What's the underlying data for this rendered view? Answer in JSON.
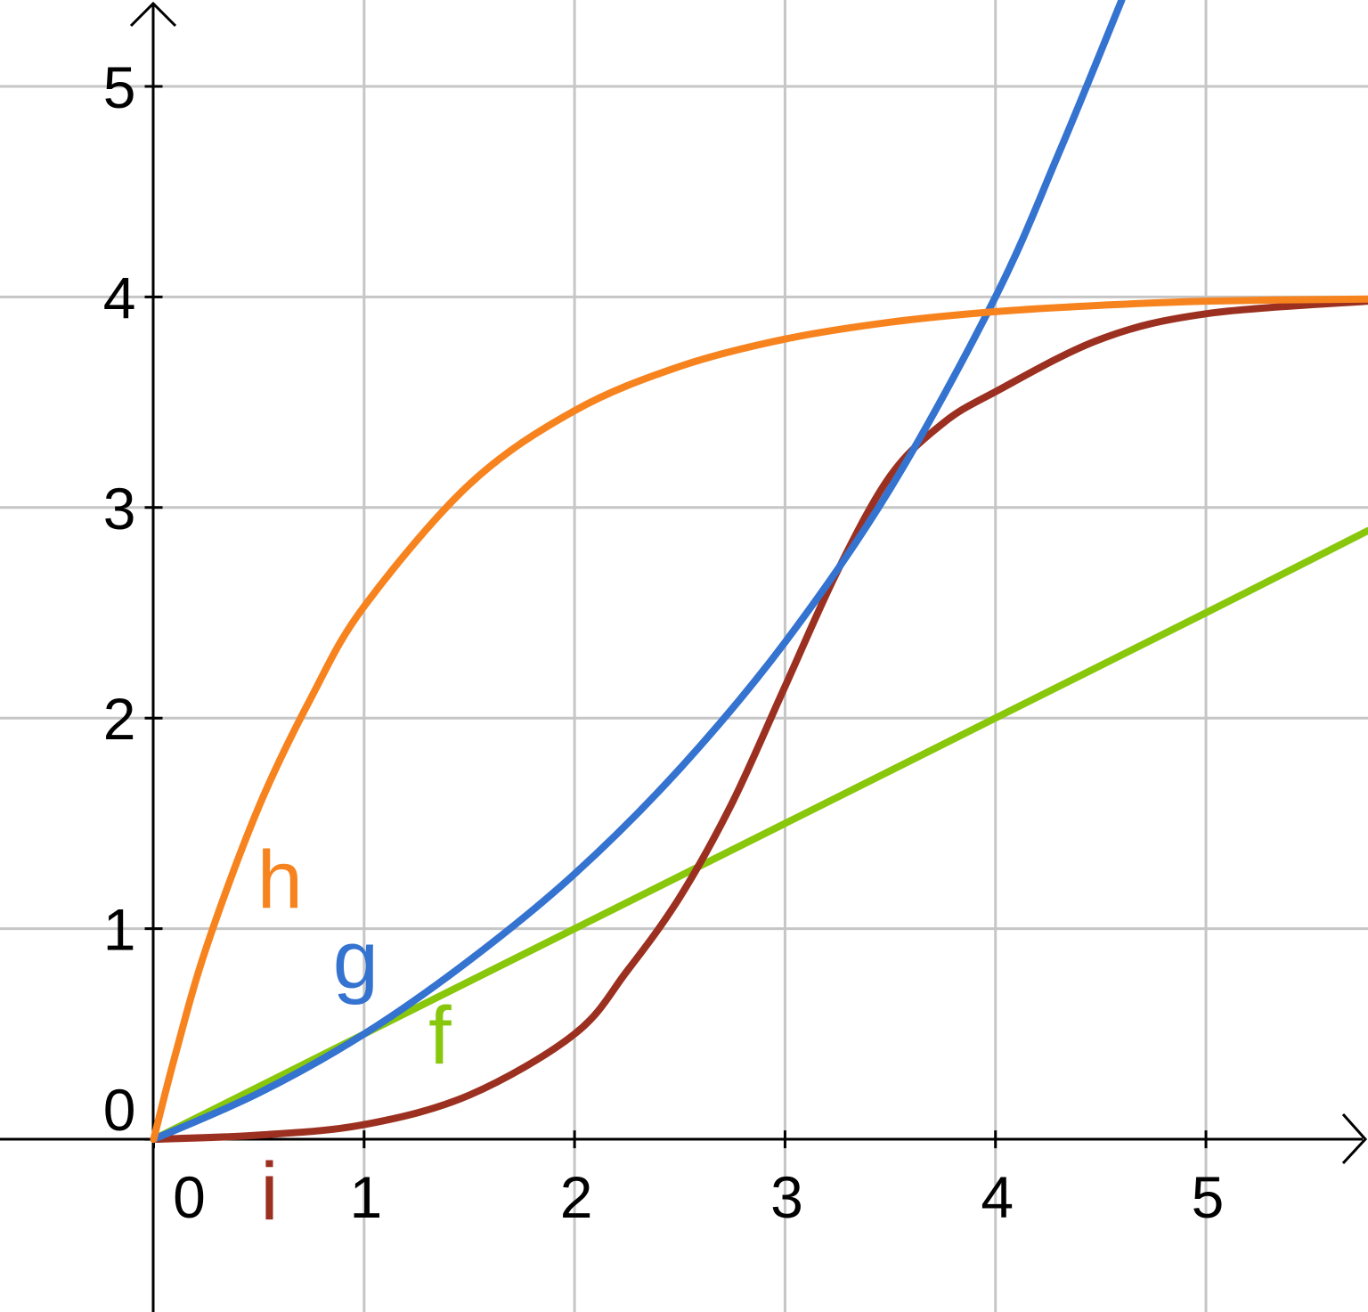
{
  "chart_data": {
    "type": "line",
    "title": "",
    "xlabel": "",
    "ylabel": "",
    "xlim": [
      -0.73,
      5.77
    ],
    "ylim": [
      -0.82,
      5.41
    ],
    "grid": true,
    "x_ticks": [
      "0",
      "1",
      "2",
      "3",
      "4",
      "5"
    ],
    "y_ticks": [
      "0",
      "1",
      "2",
      "3",
      "4",
      "5"
    ],
    "series": [
      {
        "name": "f",
        "color": "#88c70b",
        "label_at": [
          1.36,
          0.36
        ],
        "points": [
          [
            0,
            0
          ],
          [
            1,
            0.5
          ],
          [
            2,
            1.0
          ],
          [
            3,
            1.5
          ],
          [
            4,
            2.0
          ],
          [
            5,
            2.5
          ],
          [
            5.77,
            2.89
          ]
        ]
      },
      {
        "name": "g",
        "color": "#3473cf",
        "label_at": [
          0.96,
          0.72
        ],
        "points": [
          [
            0,
            0
          ],
          [
            0.5,
            0.22
          ],
          [
            1,
            0.5
          ],
          [
            1.5,
            0.85
          ],
          [
            2,
            1.26
          ],
          [
            2.5,
            1.76
          ],
          [
            3,
            2.36
          ],
          [
            3.5,
            3.09
          ],
          [
            4,
            4.0
          ],
          [
            4.3,
            4.68
          ],
          [
            4.6,
            5.41
          ]
        ]
      },
      {
        "name": "h",
        "color": "#f7831f",
        "label_at": [
          0.6,
          1.1
        ],
        "points": [
          [
            0,
            0
          ],
          [
            0.1,
            0.39
          ],
          [
            0.25,
            0.91
          ],
          [
            0.5,
            1.58
          ],
          [
            0.75,
            2.1
          ],
          [
            1,
            2.53
          ],
          [
            1.5,
            3.11
          ],
          [
            2,
            3.46
          ],
          [
            2.5,
            3.67
          ],
          [
            3,
            3.8
          ],
          [
            3.5,
            3.88
          ],
          [
            4,
            3.93
          ],
          [
            4.5,
            3.96
          ],
          [
            5,
            3.98
          ],
          [
            5.77,
            3.99
          ]
        ]
      },
      {
        "name": "i",
        "color": "#9c3020",
        "label_at": [
          0.55,
          -0.38
        ],
        "points": [
          [
            0,
            0
          ],
          [
            0.5,
            0.02
          ],
          [
            1,
            0.07
          ],
          [
            1.5,
            0.21
          ],
          [
            2,
            0.5
          ],
          [
            2.25,
            0.8
          ],
          [
            2.5,
            1.15
          ],
          [
            2.75,
            1.6
          ],
          [
            3,
            2.15
          ],
          [
            3.25,
            2.7
          ],
          [
            3.5,
            3.15
          ],
          [
            3.75,
            3.4
          ],
          [
            4,
            3.55
          ],
          [
            4.5,
            3.8
          ],
          [
            5,
            3.92
          ],
          [
            5.77,
            3.98
          ]
        ]
      }
    ]
  }
}
